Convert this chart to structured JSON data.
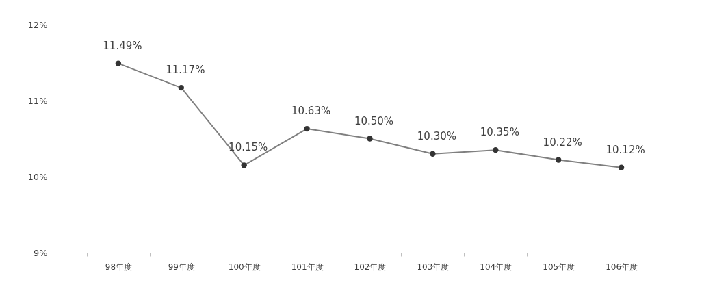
{
  "chart_data": {
    "type": "line",
    "categories": [
      "98年度",
      "99年度",
      "100年度",
      "101年度",
      "102年度",
      "103年度",
      "104年度",
      "105年度",
      "106年度"
    ],
    "series": [
      {
        "color": "#7f7f7f",
        "values": [
          11.49,
          11.17,
          10.15,
          10.63,
          10.5,
          10.3,
          10.35,
          10.22,
          10.12
        ],
        "value_labels": [
          "11.49%",
          "11.17%",
          "10.15%",
          "10.63%",
          "10.50%",
          "10.30%",
          "10.35%",
          "10.22%",
          "10.12%"
        ]
      }
    ],
    "ylim": [
      9,
      12
    ],
    "yticks": [
      {
        "value": 9,
        "label": "9%"
      },
      {
        "value": 10,
        "label": "10%"
      },
      {
        "value": 11,
        "label": "11%"
      },
      {
        "value": 12,
        "label": "12%"
      }
    ],
    "grid": false,
    "marker": "circle",
    "line_style": "solid"
  }
}
